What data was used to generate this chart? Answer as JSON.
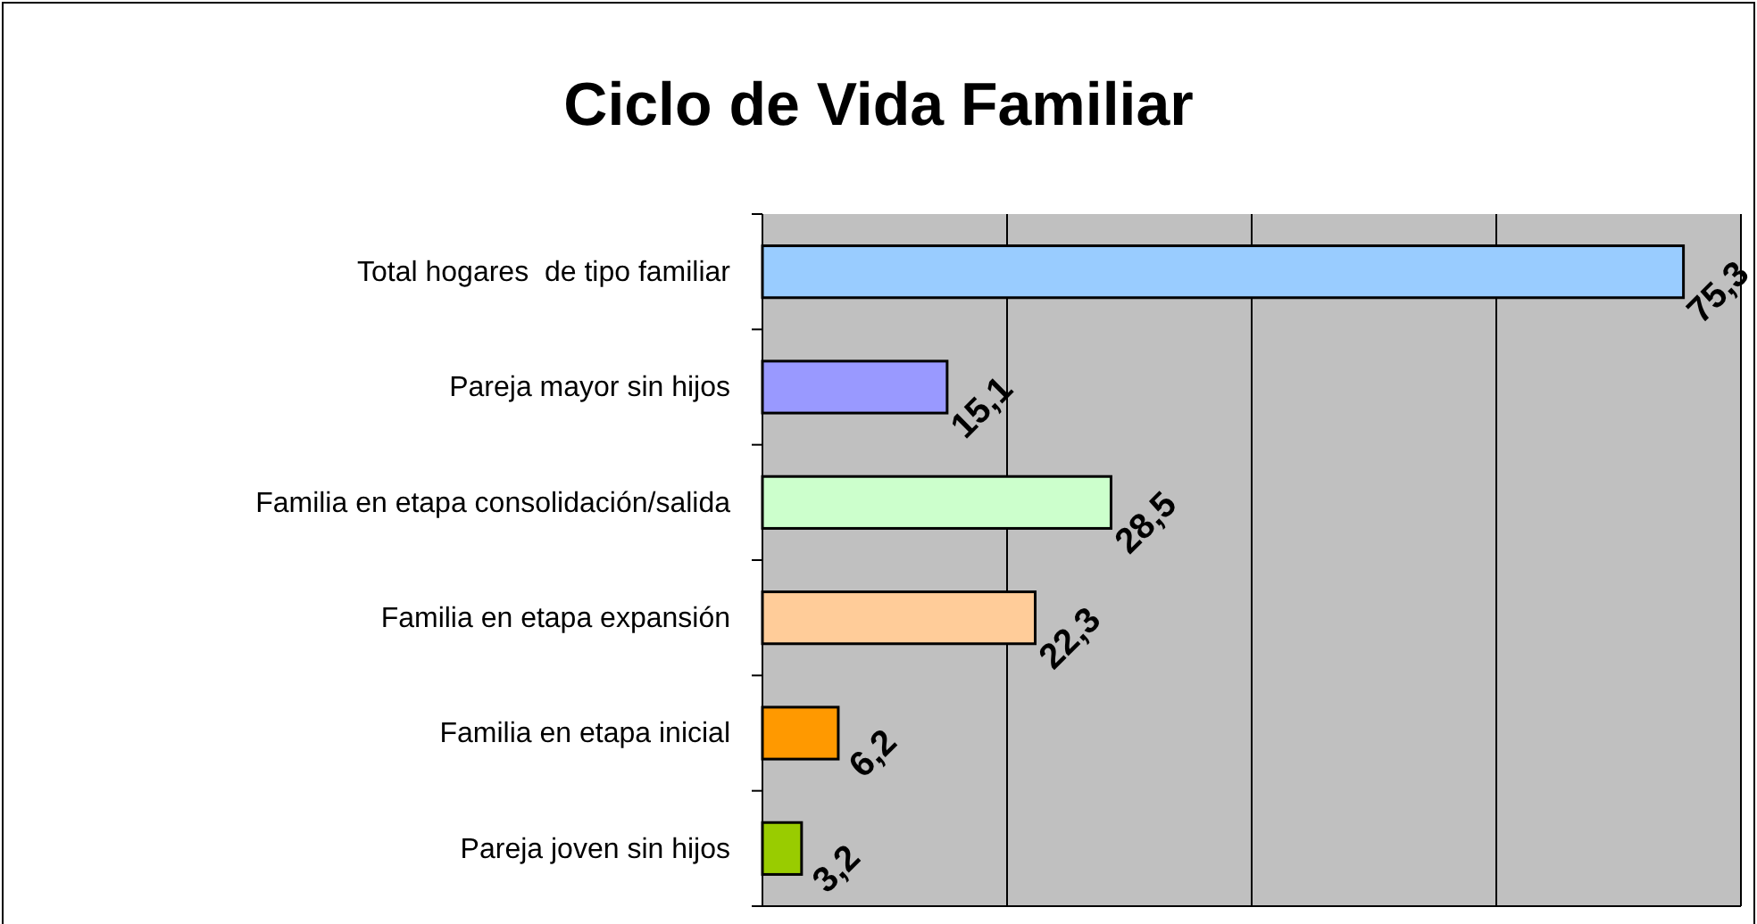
{
  "chart_data": {
    "type": "bar",
    "title": "Ciclo de Vida Familiar",
    "orientation": "horizontal",
    "categories": [
      "Total hogares  de tipo familiar",
      "Pareja mayor sin hijos",
      "Familia en etapa consolidación/salida",
      "Familia en etapa expansión",
      "Familia en etapa inicial",
      "Pareja joven sin hijos"
    ],
    "values": [
      75.3,
      15.1,
      28.5,
      22.3,
      6.2,
      3.2
    ],
    "colors": [
      "#99ccff",
      "#9999ff",
      "#ccffcc",
      "#ffcc99",
      "#ff9900",
      "#99cc00"
    ],
    "value_labels": [
      "75,3",
      "15,1",
      "28,5",
      "22,3",
      "6,2",
      "3,2"
    ],
    "xlim": [
      0,
      80
    ],
    "xticks": [
      {
        "value": 0,
        "label": null
      },
      {
        "value": 20,
        "label": null
      },
      {
        "value": 40,
        "label": null
      },
      {
        "value": 60,
        "label": null
      },
      {
        "value": 80,
        "label": null
      }
    ],
    "tick_labels": "y",
    "grid": "x"
  }
}
